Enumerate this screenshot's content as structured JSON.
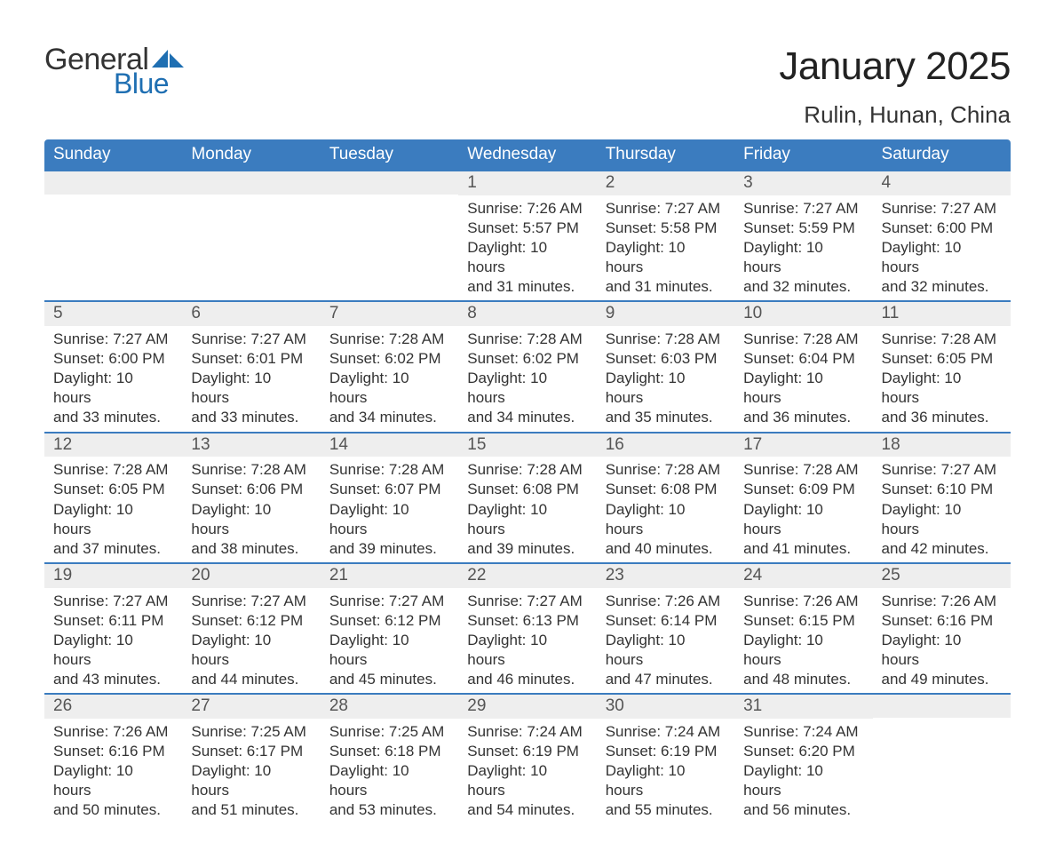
{
  "logo": {
    "general": "General",
    "blue": "Blue"
  },
  "title": "January 2025",
  "location": "Rulin, Hunan, China",
  "colors": {
    "header_bg": "#3b7cbf",
    "header_text": "#ffffff",
    "daynum_bg": "#eeeeee",
    "text": "#333333",
    "accent": "#1f6fb2",
    "page_bg": "#ffffff"
  },
  "day_headers": [
    "Sunday",
    "Monday",
    "Tuesday",
    "Wednesday",
    "Thursday",
    "Friday",
    "Saturday"
  ],
  "weeks": [
    [
      null,
      null,
      null,
      {
        "n": "1",
        "sunrise": "Sunrise: 7:26 AM",
        "sunset": "Sunset: 5:57 PM",
        "d1": "Daylight: 10 hours",
        "d2": "and 31 minutes."
      },
      {
        "n": "2",
        "sunrise": "Sunrise: 7:27 AM",
        "sunset": "Sunset: 5:58 PM",
        "d1": "Daylight: 10 hours",
        "d2": "and 31 minutes."
      },
      {
        "n": "3",
        "sunrise": "Sunrise: 7:27 AM",
        "sunset": "Sunset: 5:59 PM",
        "d1": "Daylight: 10 hours",
        "d2": "and 32 minutes."
      },
      {
        "n": "4",
        "sunrise": "Sunrise: 7:27 AM",
        "sunset": "Sunset: 6:00 PM",
        "d1": "Daylight: 10 hours",
        "d2": "and 32 minutes."
      }
    ],
    [
      {
        "n": "5",
        "sunrise": "Sunrise: 7:27 AM",
        "sunset": "Sunset: 6:00 PM",
        "d1": "Daylight: 10 hours",
        "d2": "and 33 minutes."
      },
      {
        "n": "6",
        "sunrise": "Sunrise: 7:27 AM",
        "sunset": "Sunset: 6:01 PM",
        "d1": "Daylight: 10 hours",
        "d2": "and 33 minutes."
      },
      {
        "n": "7",
        "sunrise": "Sunrise: 7:28 AM",
        "sunset": "Sunset: 6:02 PM",
        "d1": "Daylight: 10 hours",
        "d2": "and 34 minutes."
      },
      {
        "n": "8",
        "sunrise": "Sunrise: 7:28 AM",
        "sunset": "Sunset: 6:02 PM",
        "d1": "Daylight: 10 hours",
        "d2": "and 34 minutes."
      },
      {
        "n": "9",
        "sunrise": "Sunrise: 7:28 AM",
        "sunset": "Sunset: 6:03 PM",
        "d1": "Daylight: 10 hours",
        "d2": "and 35 minutes."
      },
      {
        "n": "10",
        "sunrise": "Sunrise: 7:28 AM",
        "sunset": "Sunset: 6:04 PM",
        "d1": "Daylight: 10 hours",
        "d2": "and 36 minutes."
      },
      {
        "n": "11",
        "sunrise": "Sunrise: 7:28 AM",
        "sunset": "Sunset: 6:05 PM",
        "d1": "Daylight: 10 hours",
        "d2": "and 36 minutes."
      }
    ],
    [
      {
        "n": "12",
        "sunrise": "Sunrise: 7:28 AM",
        "sunset": "Sunset: 6:05 PM",
        "d1": "Daylight: 10 hours",
        "d2": "and 37 minutes."
      },
      {
        "n": "13",
        "sunrise": "Sunrise: 7:28 AM",
        "sunset": "Sunset: 6:06 PM",
        "d1": "Daylight: 10 hours",
        "d2": "and 38 minutes."
      },
      {
        "n": "14",
        "sunrise": "Sunrise: 7:28 AM",
        "sunset": "Sunset: 6:07 PM",
        "d1": "Daylight: 10 hours",
        "d2": "and 39 minutes."
      },
      {
        "n": "15",
        "sunrise": "Sunrise: 7:28 AM",
        "sunset": "Sunset: 6:08 PM",
        "d1": "Daylight: 10 hours",
        "d2": "and 39 minutes."
      },
      {
        "n": "16",
        "sunrise": "Sunrise: 7:28 AM",
        "sunset": "Sunset: 6:08 PM",
        "d1": "Daylight: 10 hours",
        "d2": "and 40 minutes."
      },
      {
        "n": "17",
        "sunrise": "Sunrise: 7:28 AM",
        "sunset": "Sunset: 6:09 PM",
        "d1": "Daylight: 10 hours",
        "d2": "and 41 minutes."
      },
      {
        "n": "18",
        "sunrise": "Sunrise: 7:27 AM",
        "sunset": "Sunset: 6:10 PM",
        "d1": "Daylight: 10 hours",
        "d2": "and 42 minutes."
      }
    ],
    [
      {
        "n": "19",
        "sunrise": "Sunrise: 7:27 AM",
        "sunset": "Sunset: 6:11 PM",
        "d1": "Daylight: 10 hours",
        "d2": "and 43 minutes."
      },
      {
        "n": "20",
        "sunrise": "Sunrise: 7:27 AM",
        "sunset": "Sunset: 6:12 PM",
        "d1": "Daylight: 10 hours",
        "d2": "and 44 minutes."
      },
      {
        "n": "21",
        "sunrise": "Sunrise: 7:27 AM",
        "sunset": "Sunset: 6:12 PM",
        "d1": "Daylight: 10 hours",
        "d2": "and 45 minutes."
      },
      {
        "n": "22",
        "sunrise": "Sunrise: 7:27 AM",
        "sunset": "Sunset: 6:13 PM",
        "d1": "Daylight: 10 hours",
        "d2": "and 46 minutes."
      },
      {
        "n": "23",
        "sunrise": "Sunrise: 7:26 AM",
        "sunset": "Sunset: 6:14 PM",
        "d1": "Daylight: 10 hours",
        "d2": "and 47 minutes."
      },
      {
        "n": "24",
        "sunrise": "Sunrise: 7:26 AM",
        "sunset": "Sunset: 6:15 PM",
        "d1": "Daylight: 10 hours",
        "d2": "and 48 minutes."
      },
      {
        "n": "25",
        "sunrise": "Sunrise: 7:26 AM",
        "sunset": "Sunset: 6:16 PM",
        "d1": "Daylight: 10 hours",
        "d2": "and 49 minutes."
      }
    ],
    [
      {
        "n": "26",
        "sunrise": "Sunrise: 7:26 AM",
        "sunset": "Sunset: 6:16 PM",
        "d1": "Daylight: 10 hours",
        "d2": "and 50 minutes."
      },
      {
        "n": "27",
        "sunrise": "Sunrise: 7:25 AM",
        "sunset": "Sunset: 6:17 PM",
        "d1": "Daylight: 10 hours",
        "d2": "and 51 minutes."
      },
      {
        "n": "28",
        "sunrise": "Sunrise: 7:25 AM",
        "sunset": "Sunset: 6:18 PM",
        "d1": "Daylight: 10 hours",
        "d2": "and 53 minutes."
      },
      {
        "n": "29",
        "sunrise": "Sunrise: 7:24 AM",
        "sunset": "Sunset: 6:19 PM",
        "d1": "Daylight: 10 hours",
        "d2": "and 54 minutes."
      },
      {
        "n": "30",
        "sunrise": "Sunrise: 7:24 AM",
        "sunset": "Sunset: 6:19 PM",
        "d1": "Daylight: 10 hours",
        "d2": "and 55 minutes."
      },
      {
        "n": "31",
        "sunrise": "Sunrise: 7:24 AM",
        "sunset": "Sunset: 6:20 PM",
        "d1": "Daylight: 10 hours",
        "d2": "and 56 minutes."
      },
      null
    ]
  ]
}
